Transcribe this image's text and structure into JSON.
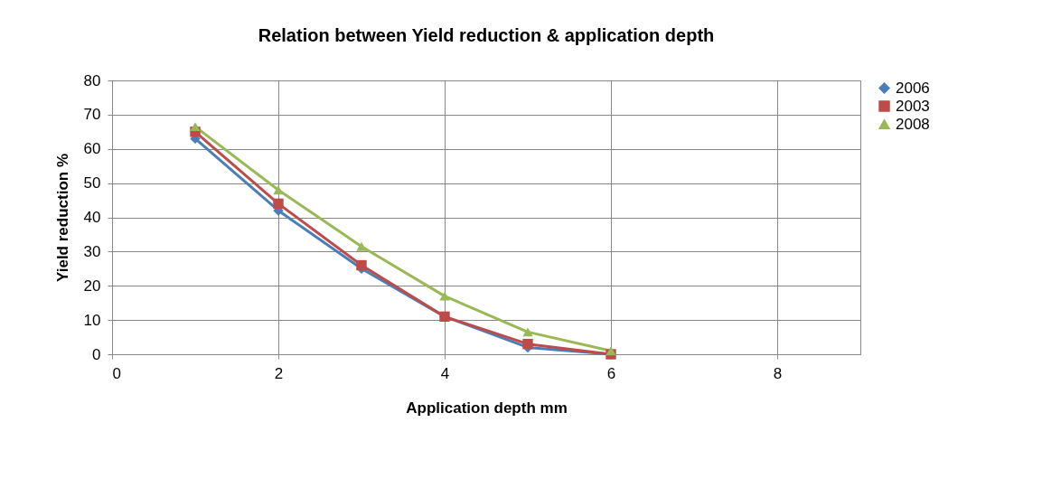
{
  "chart_data": {
    "type": "line",
    "title": "Relation between Yield reduction & application depth",
    "xlabel": "Application depth mm",
    "ylabel": "Yield reduction %",
    "x": [
      1,
      2,
      3,
      4,
      5,
      6
    ],
    "series": [
      {
        "name": "2006",
        "color": "#4a7ebb",
        "marker": "diamond",
        "values": [
          63,
          42,
          25,
          11,
          2,
          0
        ]
      },
      {
        "name": "2003",
        "color": "#be4b48",
        "marker": "square",
        "values": [
          65,
          44,
          26,
          11,
          3,
          0
        ]
      },
      {
        "name": "2008",
        "color": "#98b954",
        "marker": "triangle",
        "values": [
          66.5,
          48,
          31.5,
          17,
          6.5,
          1
        ]
      }
    ],
    "xlim": [
      0,
      9
    ],
    "xticks": [
      0,
      2,
      4,
      6,
      8
    ],
    "ylim": [
      0,
      80
    ],
    "yticks": [
      0,
      10,
      20,
      30,
      40,
      50,
      60,
      70,
      80
    ],
    "grid": true,
    "legend": "right",
    "line_style": "solid"
  }
}
